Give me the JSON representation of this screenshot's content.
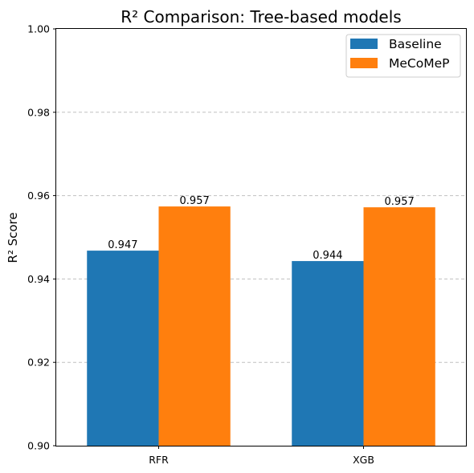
{
  "chart_data": {
    "type": "bar",
    "title": "R² Comparison: Tree-based models",
    "xlabel": "",
    "ylabel": "R² Score",
    "categories": [
      "RFR",
      "XGB"
    ],
    "series": [
      {
        "name": "Baseline",
        "values": [
          0.9468,
          0.9443
        ],
        "labels": [
          "0.947",
          "0.944"
        ],
        "color": "#1f77b4"
      },
      {
        "name": "MeCoMeP",
        "values": [
          0.9574,
          0.9572
        ],
        "labels": [
          "0.957",
          "0.957"
        ],
        "color": "#ff7f0e"
      }
    ],
    "ylim": [
      0.9,
      1.0
    ],
    "yticks": [
      0.9,
      0.92,
      0.94,
      0.96,
      0.98,
      1.0
    ],
    "ytick_labels": [
      "0.90",
      "0.92",
      "0.94",
      "0.96",
      "0.98",
      "1.00"
    ],
    "grid": "y-dashed",
    "legend_position": "top-right"
  }
}
